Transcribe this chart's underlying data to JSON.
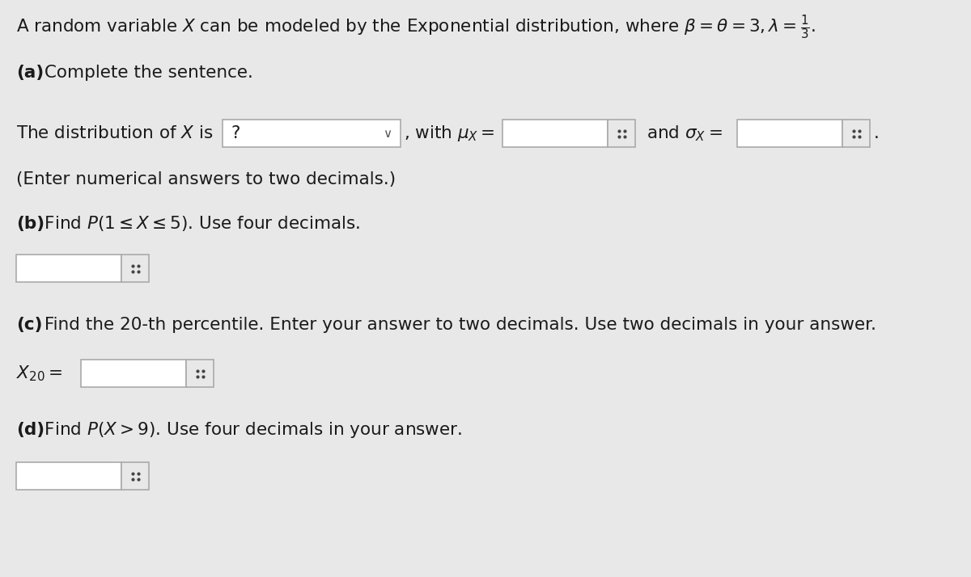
{
  "bg_color": "#e8e8e8",
  "text_color": "#1a1a1a",
  "title_line": "A random variable $X$ can be modeled by the Exponential distribution, where $\\beta = \\theta = 3, \\lambda = \\frac{1}{3}$.",
  "part_a_label_bold": "(a)",
  "part_a_label_rest": " Complete the sentence.",
  "part_a_line": "The distribution of $X$ is",
  "part_a_dropdown": "?",
  "part_a_with": ", with $\\mu_X =$",
  "part_a_and": "and $\\sigma_X =$",
  "part_a_note": "(Enter numerical answers to two decimals.)",
  "part_b_label_bold": "(b)",
  "part_b_label_rest": " Find $P(1 \\leq X \\leq 5)$. Use four decimals.",
  "part_c_label_bold": "(c)",
  "part_c_label_rest": " Find the 20-th percentile. Enter your answer to two decimals. Use two decimals in your answer.",
  "part_c_prefix": "$X_{20} =$",
  "part_d_label_bold": "(d)",
  "part_d_label_rest": " Find $P(X > 9)$. Use four decimals in your answer.",
  "box_bg": "#ffffff",
  "box_border": "#aaaaaa",
  "dot_color": "#444444",
  "font_size_title": 15.5,
  "font_size_body": 15.5,
  "font_family": "DejaVu Sans"
}
